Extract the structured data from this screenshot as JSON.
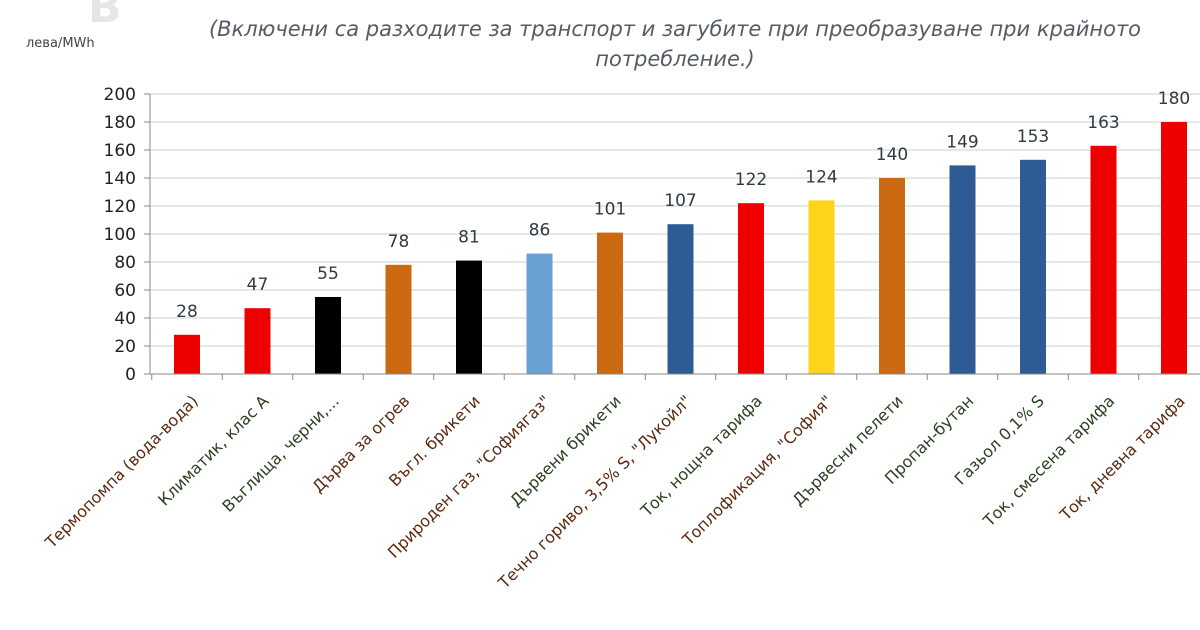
{
  "chart_data": {
    "type": "bar",
    "title": "(Включени са разходите за транспорт и загубите при преобразуване при крайното потребление.)",
    "ylabel": "лева/MWh",
    "ylim": [
      0,
      200
    ],
    "yticks": [
      0,
      20,
      40,
      60,
      80,
      100,
      120,
      140,
      160,
      180,
      200
    ],
    "grid": true,
    "legend": "none",
    "categories": [
      "Термопомпа (вода-вода)",
      "Климатик, клас А",
      "Въглища, черни,...",
      "Дърва за огрев",
      "Въгл. брикети",
      "Природен газ, \"Софиягаз\"",
      "Дървени брикети",
      "Течно гориво, 3,5% S, \"Лукойл\"",
      "Ток, нощна тарифа",
      "Топлофикация, \"София\"",
      "Дървесни пелети",
      "Пропан-бутан",
      "Газьол 0,1% S",
      "Ток, смесена тарифа",
      "Ток, дневна тарифа"
    ],
    "values": [
      28,
      47,
      55,
      78,
      81,
      86,
      101,
      107,
      122,
      124,
      140,
      149,
      153,
      163,
      180
    ],
    "bar_colors": [
      "#ee0000",
      "#ee0000",
      "#000000",
      "#cc6a14",
      "#000000",
      "#6a9fd3",
      "#cc6a14",
      "#2f5b94",
      "#ee0000",
      "#ffd21c",
      "#cc6a14",
      "#2f5b94",
      "#2f5b94",
      "#ee0000",
      "#ee0000"
    ],
    "label_colors": [
      "#5a2a10",
      "#2a4020",
      "#2a4020",
      "#5a2a10",
      "#5a2a10",
      "#5a2a10",
      "#2a4020",
      "#5a2a10",
      "#2a4020",
      "#5a2a10",
      "#2a4020",
      "#2a4020",
      "#2a4020",
      "#2a4020",
      "#5a2a10"
    ]
  }
}
